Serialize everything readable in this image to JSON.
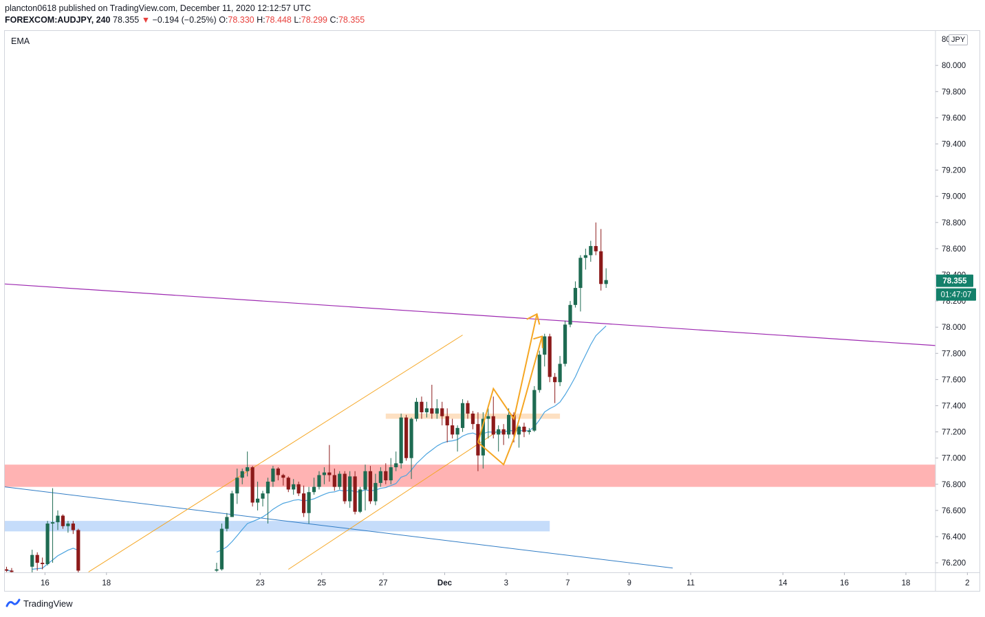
{
  "header": {
    "published_by": "plancton0618 published on TradingView.com, December 11, 2020 12:12:57 UTC",
    "symbol": "FOREXCOM:AUDJPY, 240",
    "last": "78.355",
    "change_arrow": "▼",
    "change": "−0.194 (−0.25%)",
    "o_label": "O:",
    "o": "78.330",
    "h_label": "H:",
    "h": "78.448",
    "l_label": "L:",
    "l": "78.299",
    "c_label": "C:",
    "c": "78.355"
  },
  "indicator_label": "EMA",
  "currency_badge": "JPY",
  "footer": {
    "brand": "TradingView"
  },
  "colors": {
    "up_candle": "#1e6b52",
    "down_candle": "#8c1a1a",
    "ema": "#4aa3df",
    "purple_line": "#9c27b0",
    "channel": "#f5a623",
    "blue_trend": "#2e7bc4",
    "red_zone": "#ffb3b3",
    "blue_zone": "#c5dcfa",
    "orange_zone": "#fde0c2",
    "price_badge": "#13806a"
  },
  "chart_data": {
    "type": "candlestick",
    "symbol": "FOREXCOM:AUDJPY",
    "timeframe": "240",
    "ylim": [
      76.13,
      80.2
    ],
    "y_ticks": [
      "80.000",
      "79.800",
      "79.600",
      "79.400",
      "79.200",
      "79.000",
      "78.800",
      "78.600",
      "78.400",
      "78.200",
      "78.000",
      "77.800",
      "77.600",
      "77.400",
      "77.200",
      "77.000",
      "76.800",
      "76.600",
      "76.400",
      "76.200"
    ],
    "y_top_partial": "80",
    "x_ticks": [
      {
        "label": "16",
        "t": 7.5
      },
      {
        "label": "18",
        "t": 19.5
      },
      {
        "label": "23",
        "t": 49.5
      },
      {
        "label": "25",
        "t": 61.5
      },
      {
        "label": "27",
        "t": 73.5
      },
      {
        "label": "Dec",
        "t": 85.5
      },
      {
        "label": "3",
        "t": 97.5
      },
      {
        "label": "7",
        "t": 109.5
      },
      {
        "label": "9",
        "t": 121.5
      },
      {
        "label": "11",
        "t": 133.5
      },
      {
        "label": "14",
        "t": 151.5
      },
      {
        "label": "16",
        "t": 163.5
      },
      {
        "label": "18",
        "t": 175.5
      },
      {
        "label": "2",
        "t": 187.5
      }
    ],
    "last_price": "78.355",
    "countdown": "01:47:07",
    "ohlc": [
      [
        0,
        76.15,
        76.17,
        76.13,
        76.14
      ],
      [
        1,
        76.14,
        76.16,
        76.12,
        76.13
      ],
      [
        5,
        76.17,
        76.3,
        76.12,
        76.26
      ],
      [
        6,
        76.26,
        76.28,
        76.14,
        76.2
      ],
      [
        7,
        76.2,
        76.24,
        76.15,
        76.19
      ],
      [
        8,
        76.19,
        76.52,
        76.18,
        76.5
      ],
      [
        9,
        76.5,
        76.77,
        76.2,
        76.51
      ],
      [
        10,
        76.51,
        76.6,
        76.45,
        76.56
      ],
      [
        11,
        76.56,
        76.57,
        76.46,
        76.48
      ],
      [
        12,
        76.48,
        76.52,
        76.43,
        76.5
      ],
      [
        13,
        76.5,
        76.52,
        76.42,
        76.45
      ],
      [
        14,
        76.45,
        76.46,
        76.12,
        76.14
      ],
      [
        41,
        76.14,
        76.2,
        76.13,
        76.15
      ],
      [
        42,
        76.15,
        76.5,
        76.14,
        76.46
      ],
      [
        43,
        76.46,
        76.58,
        76.44,
        76.55
      ],
      [
        44,
        76.55,
        76.75,
        76.55,
        76.73
      ],
      [
        45,
        76.73,
        76.92,
        76.65,
        76.85
      ],
      [
        46,
        76.85,
        76.92,
        76.8,
        76.9
      ],
      [
        47,
        76.9,
        77.05,
        76.86,
        76.93
      ],
      [
        48,
        76.93,
        76.94,
        76.63,
        76.66
      ],
      [
        49,
        76.66,
        76.82,
        76.6,
        76.69
      ],
      [
        50,
        76.69,
        76.75,
        76.63,
        76.73
      ],
      [
        51,
        76.73,
        76.85,
        76.5,
        76.82
      ],
      [
        52,
        76.82,
        76.94,
        76.78,
        76.92
      ],
      [
        53,
        76.92,
        76.93,
        76.83,
        76.87
      ],
      [
        54,
        76.87,
        76.88,
        76.79,
        76.85
      ],
      [
        55,
        76.85,
        76.86,
        76.74,
        76.76
      ],
      [
        56,
        76.76,
        76.84,
        76.72,
        76.8
      ],
      [
        57,
        76.8,
        76.82,
        76.71,
        76.73
      ],
      [
        58,
        76.73,
        76.79,
        76.55,
        76.58
      ],
      [
        59,
        76.58,
        76.78,
        76.5,
        76.74
      ],
      [
        60,
        76.74,
        76.85,
        76.72,
        76.78
      ],
      [
        61,
        76.78,
        76.9,
        76.76,
        76.87
      ],
      [
        62,
        76.87,
        76.93,
        76.8,
        76.89
      ],
      [
        63,
        76.89,
        77.1,
        76.82,
        76.87
      ],
      [
        64,
        76.87,
        76.92,
        76.75,
        76.78
      ],
      [
        65,
        76.78,
        76.9,
        76.76,
        76.88
      ],
      [
        66,
        76.88,
        76.9,
        76.65,
        76.67
      ],
      [
        67,
        76.67,
        76.9,
        76.62,
        76.86
      ],
      [
        68,
        76.86,
        76.9,
        76.57,
        76.59
      ],
      [
        69,
        76.59,
        76.78,
        76.58,
        76.76
      ],
      [
        70,
        76.76,
        76.95,
        76.6,
        76.9
      ],
      [
        71,
        76.9,
        76.94,
        76.65,
        76.67
      ],
      [
        72,
        76.67,
        76.88,
        76.64,
        76.81
      ],
      [
        73,
        76.81,
        76.93,
        76.78,
        76.9
      ],
      [
        74,
        76.9,
        76.96,
        76.8,
        76.83
      ],
      [
        75,
        76.83,
        77.0,
        76.8,
        76.93
      ],
      [
        76,
        76.93,
        77.05,
        76.9,
        76.96
      ],
      [
        77,
        76.96,
        77.34,
        76.92,
        77.31
      ],
      [
        78,
        77.31,
        77.33,
        76.98,
        77.0
      ],
      [
        79,
        77.0,
        77.31,
        76.84,
        77.3
      ],
      [
        80,
        77.3,
        77.46,
        77.28,
        77.43
      ],
      [
        81,
        77.43,
        77.47,
        77.3,
        77.35
      ],
      [
        82,
        77.35,
        77.43,
        77.31,
        77.38
      ],
      [
        83,
        77.38,
        77.56,
        77.3,
        77.34
      ],
      [
        84,
        77.34,
        77.45,
        77.3,
        77.38
      ],
      [
        85,
        77.38,
        77.43,
        77.25,
        77.32
      ],
      [
        86,
        77.32,
        77.38,
        77.12,
        77.25
      ],
      [
        87,
        77.25,
        77.3,
        77.15,
        77.18
      ],
      [
        88,
        77.18,
        77.25,
        77.05,
        77.23
      ],
      [
        89,
        77.23,
        77.45,
        77.2,
        77.42
      ],
      [
        90,
        77.42,
        77.44,
        77.3,
        77.34
      ],
      [
        91,
        77.34,
        77.36,
        77.22,
        77.26
      ],
      [
        92,
        77.26,
        77.35,
        76.9,
        77.02
      ],
      [
        93,
        77.02,
        77.35,
        76.92,
        77.3
      ],
      [
        94,
        77.3,
        77.38,
        77.15,
        77.32
      ],
      [
        95,
        77.32,
        77.47,
        77.15,
        77.18
      ],
      [
        96,
        77.18,
        77.25,
        77.05,
        77.22
      ],
      [
        97,
        77.22,
        77.26,
        77.1,
        77.18
      ],
      [
        98,
        77.18,
        77.38,
        77.15,
        77.33
      ],
      [
        99,
        77.33,
        77.35,
        77.12,
        77.18
      ],
      [
        100,
        77.18,
        77.25,
        77.08,
        77.24
      ],
      [
        101,
        77.24,
        77.27,
        77.16,
        77.2
      ],
      [
        102,
        77.2,
        77.23,
        77.18,
        77.21
      ],
      [
        103,
        77.21,
        77.55,
        77.2,
        77.52
      ],
      [
        104,
        77.52,
        77.82,
        77.5,
        77.79
      ],
      [
        105,
        77.79,
        77.95,
        77.7,
        77.93
      ],
      [
        106,
        77.93,
        77.95,
        77.58,
        77.62
      ],
      [
        107,
        77.62,
        77.65,
        77.42,
        77.58
      ],
      [
        108,
        77.58,
        77.78,
        77.55,
        77.72
      ],
      [
        109,
        77.72,
        78.05,
        77.7,
        78.02
      ],
      [
        110,
        78.02,
        78.2,
        78.0,
        78.17
      ],
      [
        111,
        78.17,
        78.35,
        78.15,
        78.3
      ],
      [
        112,
        78.3,
        78.55,
        78.12,
        78.53
      ],
      [
        113,
        78.53,
        78.6,
        78.44,
        78.55
      ],
      [
        114,
        78.55,
        78.66,
        78.5,
        78.62
      ],
      [
        115,
        78.62,
        78.8,
        78.55,
        78.58
      ],
      [
        116,
        78.58,
        78.75,
        78.28,
        78.33
      ],
      [
        117,
        78.33,
        78.45,
        78.3,
        78.36
      ]
    ]
  }
}
